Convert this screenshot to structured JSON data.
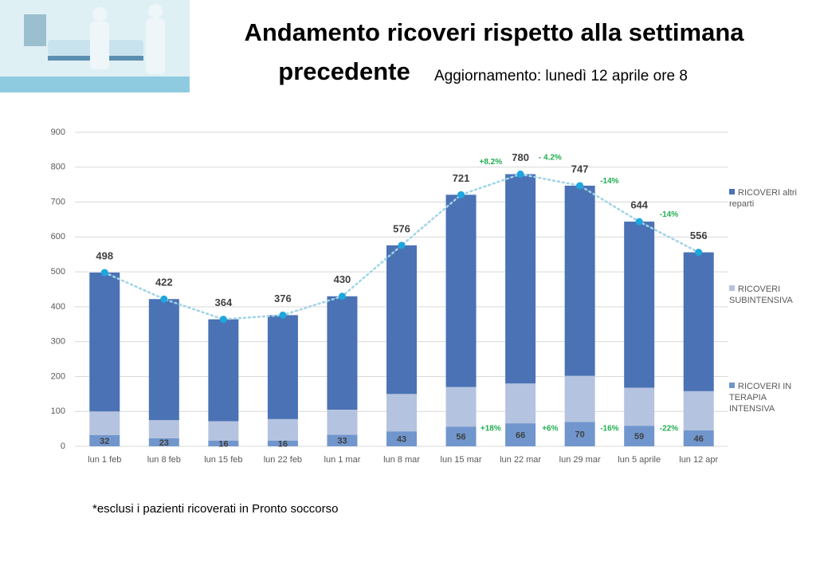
{
  "title_line1": "Andamento ricoveri rispetto alla settimana",
  "title_line2": "precedente",
  "update": "Aggiornamento: lunedì 12  aprile ore 8",
  "footnote": "*esclusi i pazienti ricoverati in Pronto soccorso",
  "chart_data": {
    "type": "bar",
    "stacked": true,
    "categories": [
      "lun 1 feb",
      "lun 8 feb",
      "lun 15 feb",
      "lun 22 feb",
      "lun 1 mar",
      "lun 8 mar",
      "lun 15 mar",
      "lun 22 mar",
      "lun 29 mar",
      "lun 5 aprile",
      "lun 12 apr"
    ],
    "series": [
      {
        "name": "RICOVERI IN TERAPIA INTENSIVA",
        "color": "#7196cd",
        "values": [
          32,
          23,
          16,
          16,
          33,
          43,
          56,
          66,
          70,
          59,
          46
        ]
      },
      {
        "name": "RICOVERI SUBINTENSIVA",
        "color": "#b4c3df",
        "values": [
          68,
          52,
          56,
          62,
          72,
          107,
          114,
          114,
          132,
          109,
          112
        ]
      },
      {
        "name": "RICOVERI altri reparti",
        "color": "#4a72b5",
        "values": [
          398,
          347,
          292,
          298,
          325,
          426,
          551,
          600,
          545,
          476,
          398
        ]
      }
    ],
    "line": {
      "color": "#9fd4e6",
      "marker_color": "#1ea6df",
      "values": [
        498,
        422,
        364,
        376,
        430,
        576,
        721,
        780,
        747,
        644,
        556
      ]
    },
    "total_changes": [
      null,
      null,
      null,
      null,
      null,
      null,
      null,
      "+8.2%",
      "- 4.2%",
      "-14%",
      "-14%"
    ],
    "intensive_changes": [
      null,
      null,
      null,
      null,
      null,
      null,
      null,
      "+18%",
      "+6%",
      "-16%",
      "-22%"
    ],
    "ylim": [
      0,
      900
    ],
    "yticks": [
      0,
      100,
      200,
      300,
      400,
      500,
      600,
      700,
      800,
      900
    ],
    "grid": true
  }
}
